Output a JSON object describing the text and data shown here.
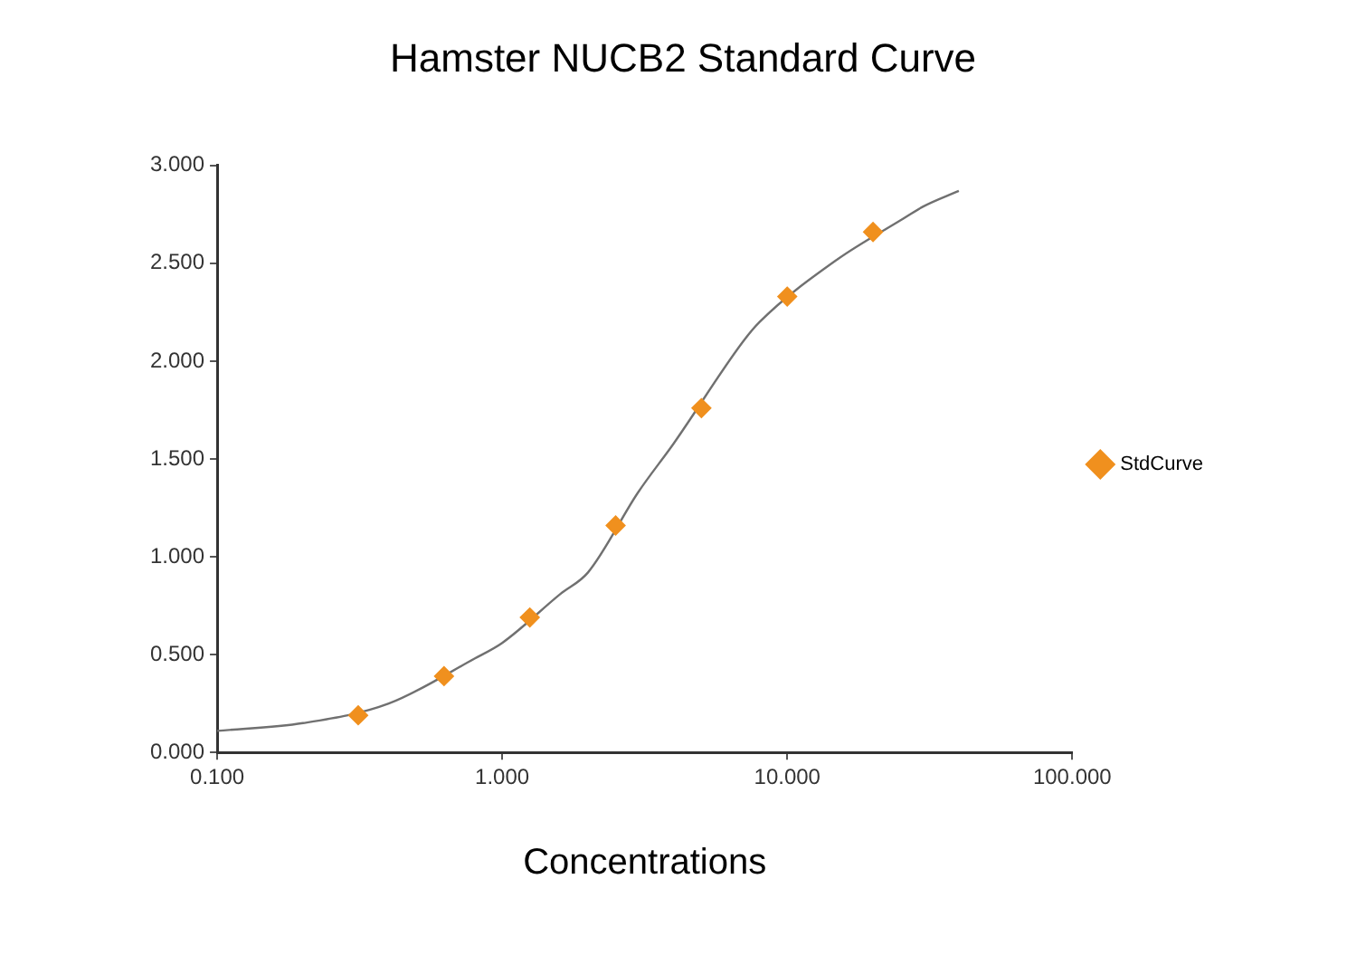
{
  "chart_data": {
    "type": "scatter",
    "title": "Hamster NUCB2 Standard Curve",
    "xlabel": "Concentrations",
    "log": "x",
    "xlim": [
      0.1,
      100
    ],
    "xticks": [
      {
        "value": 0.1,
        "label": "0.100"
      },
      {
        "value": 1,
        "label": "1.000"
      },
      {
        "value": 10,
        "label": "10.000"
      },
      {
        "value": 100,
        "label": "100.000"
      }
    ],
    "ylim": [
      0,
      3
    ],
    "yticks": [
      {
        "value": 0,
        "label": "0.000"
      },
      {
        "value": 0.5,
        "label": "0.500"
      },
      {
        "value": 1,
        "label": "1.000"
      },
      {
        "value": 1.5,
        "label": "1.500"
      },
      {
        "value": 2,
        "label": "2.000"
      },
      {
        "value": 2.5,
        "label": "2.500"
      },
      {
        "value": 3,
        "label": "3.000"
      }
    ],
    "grid": false,
    "legend": "right",
    "series": [
      {
        "name": "StdCurve",
        "type": "scatter",
        "marker": "diamond",
        "color": "#f0901e",
        "x": [
          0.3125,
          0.625,
          1.25,
          2.5,
          5,
          10,
          20
        ],
        "values": [
          0.19,
          0.39,
          0.69,
          1.16,
          1.76,
          2.33,
          2.66
        ]
      },
      {
        "type": "line",
        "marker": "none",
        "color": "#707070",
        "x": [
          0.1,
          0.2,
          0.4,
          0.8,
          1,
          1.6,
          2,
          3,
          4,
          7,
          8,
          15,
          25,
          30,
          40
        ],
        "values": [
          0.11,
          0.15,
          0.25,
          0.48,
          0.56,
          0.81,
          0.92,
          1.33,
          1.58,
          2.1,
          2.2,
          2.52,
          2.72,
          2.79,
          2.87
        ]
      }
    ]
  }
}
